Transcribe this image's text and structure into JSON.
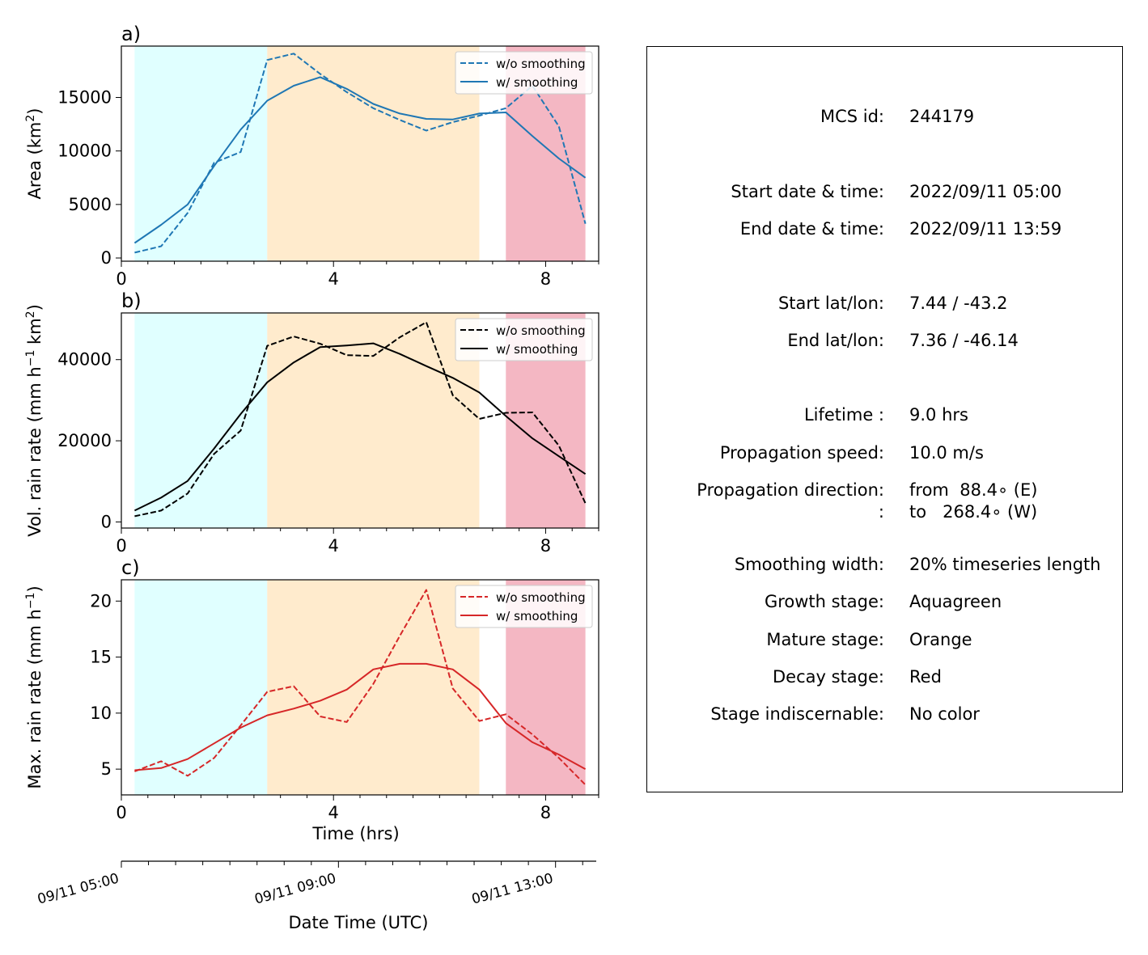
{
  "figure": {
    "panels": [
      {
        "letter": "a)",
        "ylabel_text": "Area  (km",
        "ylabel_sup": "2",
        "ylabel_end": ")",
        "color": "#1f77b4"
      },
      {
        "letter": "b)",
        "ylabel_text": "Vol. rain rate (mm h",
        "ylabel_sup": "−1",
        "ylabel_mid": " km",
        "ylabel_sup2": "2",
        "ylabel_end": ")",
        "color": "#000000"
      },
      {
        "letter": "c)",
        "ylabel_text": "Max. rain rate  (mm h",
        "ylabel_sup": "−1",
        "ylabel_end": ")",
        "color": "#d62728"
      }
    ],
    "stage_colors": {
      "growth": "#e0ffff",
      "mature": "#ffebcd",
      "decay": "#f4b7c3"
    },
    "stage_spans": {
      "growth": [
        0.25,
        2.75
      ],
      "mature": [
        2.75,
        6.75
      ],
      "decay": [
        7.25,
        8.75
      ]
    },
    "xlabel": "Time (hrs)",
    "datetime_axis": {
      "label": "Date Time (UTC)",
      "ticks": [
        "09/11 05:00",
        "09/11 09:00",
        "09/11 13:00"
      ]
    }
  },
  "chart_data": [
    {
      "type": "line",
      "title": "a)",
      "xlabel": "",
      "ylabel": "Area  (km2)",
      "xlim": [
        0,
        9
      ],
      "ylim": [
        -300,
        19800
      ],
      "xticks": [
        0,
        4,
        8
      ],
      "yticks": [
        0,
        5000,
        10000,
        15000
      ],
      "x": [
        0.25,
        0.75,
        1.25,
        1.75,
        2.25,
        2.75,
        3.25,
        3.75,
        4.25,
        4.75,
        5.25,
        5.75,
        6.25,
        6.75,
        7.25,
        7.75,
        8.25,
        8.75
      ],
      "legend": {
        "position": "top-right"
      },
      "series": [
        {
          "name": "w/o smoothing",
          "style": "dashed",
          "values": [
            500,
            1100,
            4200,
            8900,
            9900,
            18500,
            19100,
            17200,
            15500,
            14000,
            12900,
            11900,
            12700,
            13300,
            14000,
            16100,
            12300,
            3200
          ]
        },
        {
          "name": "w/ smoothing",
          "style": "solid",
          "values": [
            1400,
            3100,
            5000,
            8600,
            12000,
            14700,
            16100,
            16900,
            15800,
            14400,
            13500,
            13000,
            12950,
            13500,
            13600,
            11400,
            9300,
            7500
          ]
        }
      ]
    },
    {
      "type": "line",
      "title": "b)",
      "xlabel": "",
      "ylabel": "Vol. rain rate (mm h−1 km2)",
      "xlim": [
        0,
        9
      ],
      "ylim": [
        -1500,
        51500
      ],
      "xticks": [
        0,
        4,
        8
      ],
      "yticks": [
        0,
        20000,
        40000
      ],
      "x": [
        0.25,
        0.75,
        1.25,
        1.75,
        2.25,
        2.75,
        3.25,
        3.75,
        4.25,
        4.75,
        5.25,
        5.75,
        6.25,
        6.75,
        7.25,
        7.75,
        8.25,
        8.75
      ],
      "legend": {
        "position": "top-right"
      },
      "series": [
        {
          "name": "w/o smoothing",
          "style": "dashed",
          "values": [
            1400,
            2800,
            7000,
            16800,
            22500,
            43400,
            45700,
            43900,
            41100,
            40900,
            45500,
            49200,
            31200,
            25400,
            26900,
            27000,
            18800,
            4600
          ]
        },
        {
          "name": "w/ smoothing",
          "style": "solid",
          "values": [
            2800,
            6000,
            10100,
            18100,
            26600,
            34400,
            39300,
            43100,
            43500,
            44000,
            41400,
            38400,
            35500,
            31900,
            26100,
            20600,
            16200,
            11800
          ]
        }
      ]
    },
    {
      "type": "line",
      "title": "c)",
      "xlabel": "Time (hrs)",
      "ylabel": "Max. rain rate  (mm h−1)",
      "xlim": [
        0,
        9
      ],
      "ylim": [
        2.7,
        21.9
      ],
      "xticks": [
        0,
        4,
        8
      ],
      "yticks": [
        5,
        10,
        15,
        20
      ],
      "x": [
        0.25,
        0.75,
        1.25,
        1.75,
        2.25,
        2.75,
        3.25,
        3.75,
        4.25,
        4.75,
        5.25,
        5.75,
        6.25,
        6.75,
        7.25,
        7.75,
        8.25,
        8.75
      ],
      "legend": {
        "position": "top-right"
      },
      "series": [
        {
          "name": "w/o smoothing",
          "style": "dashed",
          "values": [
            4.8,
            5.7,
            4.4,
            6.0,
            8.9,
            11.9,
            12.4,
            9.7,
            9.2,
            12.6,
            16.9,
            21.0,
            12.2,
            9.3,
            9.9,
            8.1,
            6.0,
            3.6
          ]
        },
        {
          "name": "w/ smoothing",
          "style": "solid",
          "values": [
            4.9,
            5.1,
            5.9,
            7.3,
            8.7,
            9.8,
            10.4,
            11.1,
            12.1,
            13.9,
            14.4,
            14.4,
            13.9,
            12.1,
            9.1,
            7.4,
            6.3,
            5.0
          ]
        }
      ]
    }
  ],
  "info": {
    "rows": [
      {
        "label": "MCS id:",
        "value": "244179"
      },
      {
        "label": "Start date & time:",
        "value": "2022/09/11 05:00"
      },
      {
        "label": "End date & time:",
        "value": "2022/09/11 13:59"
      },
      {
        "label": "Start lat/lon:",
        "value": "7.44 / -43.2"
      },
      {
        "label": "End lat/lon:",
        "value": "7.36 / -46.14"
      },
      {
        "label": "Lifetime :",
        "value": "9.0 hrs"
      },
      {
        "label": "Propagation speed:",
        "value": "10.0 m/s"
      },
      {
        "label": "Propagation direction:",
        "value": "from  88.4∘ (E)"
      },
      {
        "label": ":",
        "value": "to   268.4∘ (W)"
      },
      {
        "label": "Smoothing width:",
        "value": "20% timeseries length"
      },
      {
        "label": "Growth stage:",
        "value": "Aquagreen"
      },
      {
        "label": "Mature stage:",
        "value": "Orange"
      },
      {
        "label": "Decay stage:",
        "value": "Red"
      },
      {
        "label": "Stage indiscernable:",
        "value": "No color"
      }
    ]
  }
}
